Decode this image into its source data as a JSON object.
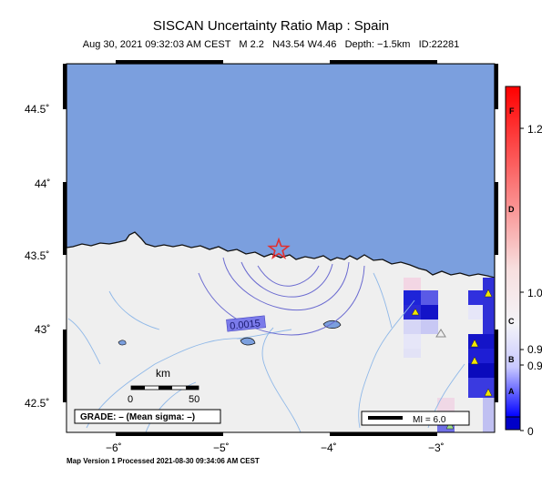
{
  "title": "SISCAN Uncertainty Ratio Map : Spain",
  "subtitle": "Aug 30, 2021 09:32:03 AM CEST   M 2.2   N43.54 W4.46   Depth: −1.5km   ID:22281",
  "footer": "Map Version 1 Processed 2021-08-30 09:34:06 AM CEST",
  "axes": {
    "lat_ticks": [
      {
        "value": 44.5,
        "label": "44.5˚"
      },
      {
        "value": 44.0,
        "label": "44˚"
      },
      {
        "value": 43.5,
        "label": "43.5˚"
      },
      {
        "value": 43.0,
        "label": "43˚"
      },
      {
        "value": 42.5,
        "label": "42.5˚"
      }
    ],
    "lon_ticks": [
      {
        "value": -6,
        "label": "−6˚"
      },
      {
        "value": -5,
        "label": "−5˚"
      },
      {
        "value": -4,
        "label": "−4˚"
      },
      {
        "value": -3,
        "label": "−3˚"
      }
    ],
    "lon_range": [
      -6.5,
      -2.5
    ],
    "lat_range": [
      42.3,
      44.82
    ]
  },
  "epicenter": {
    "lat": 43.54,
    "lon": -4.46,
    "symbol": "star",
    "color": "#e03030"
  },
  "contour_label": "0.0015",
  "scale_bar": {
    "title": "km",
    "min_label": "0",
    "max_label": "50"
  },
  "grade_box": "GRADE: – (Mean sigma: –)",
  "mi_box": "MI = 6.0",
  "colorbar": {
    "letters": [
      "F",
      "D",
      "C",
      "B",
      "A"
    ],
    "values": [
      "1.2",
      "1.0",
      "0.9",
      "0.9",
      "0"
    ],
    "top_color": "#ff0000",
    "bottom_color": "#0000ff"
  },
  "colors": {
    "sea": "#7b9fde",
    "land": "#efefef",
    "contour": "#6a6ad0",
    "river": "#8fb8e8",
    "station": "#f2e600"
  }
}
